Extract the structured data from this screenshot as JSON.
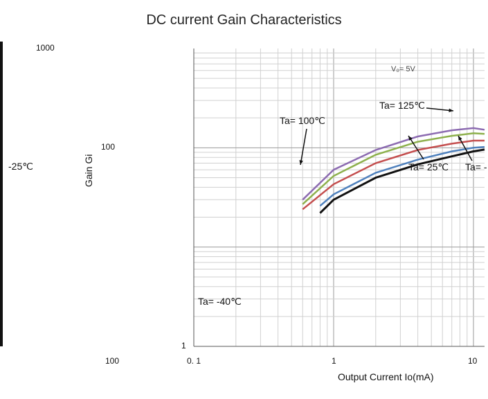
{
  "chart_data": {
    "type": "line",
    "title": "DC current Gain Characteristics",
    "xlabel": "Output Current   Io(mA)",
    "ylabel": "Gain Gi",
    "x_scale": "log",
    "y_scale": "log",
    "xlim": [
      0.1,
      12
    ],
    "ylim": [
      1,
      1000
    ],
    "x_ticks": [
      {
        "value": 0.1,
        "label": "0. 1"
      },
      {
        "value": 1,
        "label": "1"
      },
      {
        "value": 10,
        "label": "10"
      }
    ],
    "y_ticks": [
      {
        "value": 1,
        "label": "1"
      },
      {
        "value": 100,
        "label": "100"
      },
      {
        "value": 1000,
        "label": "1000"
      }
    ],
    "grid": true,
    "series": [
      {
        "name": "Ta= 125℃",
        "color": "#8c6bb1",
        "x": [
          0.6,
          1,
          2,
          4,
          7,
          10,
          12
        ],
        "y": [
          30,
          60,
          95,
          130,
          150,
          158,
          152
        ]
      },
      {
        "name": "Ta= 100℃",
        "color": "#8db04c",
        "x": [
          0.6,
          1,
          2,
          4,
          7,
          10,
          12
        ],
        "y": [
          27,
          52,
          85,
          115,
          132,
          140,
          138
        ]
      },
      {
        "name": "",
        "color": "#c44e4e",
        "x": [
          0.6,
          1,
          2,
          4,
          7,
          10,
          12
        ],
        "y": [
          24,
          43,
          70,
          95,
          110,
          118,
          118
        ]
      },
      {
        "name": "Ta= 25℃",
        "color": "#4f81bd",
        "x": [
          0.8,
          1,
          2,
          4,
          7,
          10,
          12
        ],
        "y": [
          26,
          34,
          56,
          76,
          92,
          100,
          102
        ]
      },
      {
        "name": "Ta= -40℃",
        "color": "#111111",
        "x": [
          0.8,
          1,
          2,
          4,
          7,
          10,
          12
        ],
        "y": [
          22,
          30,
          50,
          68,
          82,
          92,
          96
        ]
      }
    ],
    "fragments": {
      "condition": "V₀= 5V",
      "left_annot": "-25℃",
      "left_tick": "100",
      "right_cut": "Ta= -"
    }
  }
}
